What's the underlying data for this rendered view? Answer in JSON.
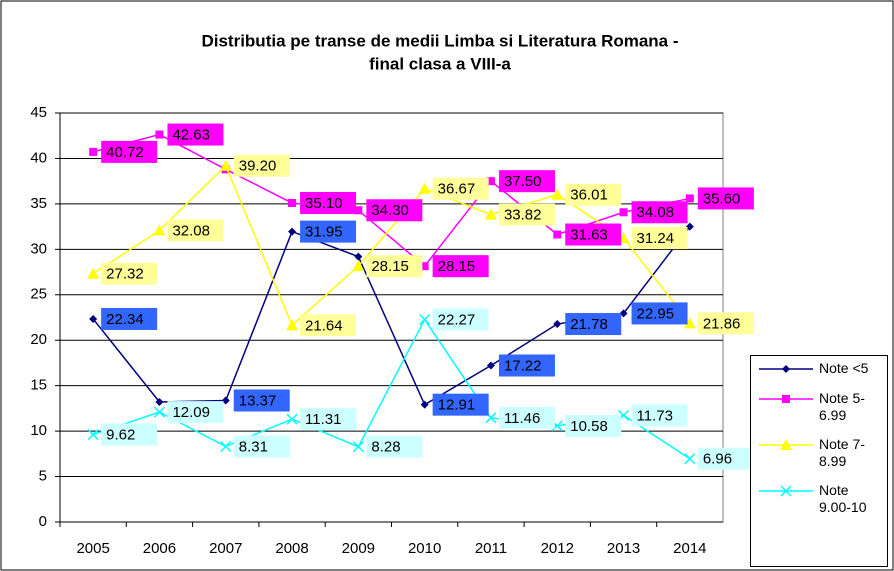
{
  "chart_data": {
    "type": "line",
    "title": [
      "Distributia pe transe de medii Limba si Literatura Romana -",
      "final clasa a VIII-a"
    ],
    "categories": [
      "2005",
      "2006",
      "2007",
      "2008",
      "2009",
      "2010",
      "2011",
      "2012",
      "2013",
      "2014"
    ],
    "ylim": [
      0,
      45
    ],
    "yticks": [
      0,
      5,
      10,
      15,
      20,
      25,
      30,
      35,
      40,
      45
    ],
    "grid": true,
    "legend": "right",
    "series": [
      {
        "name": "Note <5",
        "color": "#000080",
        "marker": "diamond",
        "label_bg": "#3366ff",
        "values": [
          22.34,
          13.2,
          13.37,
          31.95,
          29.2,
          12.91,
          17.22,
          21.78,
          22.95,
          32.5
        ],
        "value_labels": [
          "22.34",
          null,
          "13.37",
          "31.95",
          null,
          "12.91",
          "17.22",
          "21.78",
          "22.95",
          null
        ]
      },
      {
        "name": "Note 5-6.99",
        "color": "#ff00ff",
        "marker": "square",
        "label_bg": "#ff00ff",
        "values": [
          40.72,
          42.63,
          38.8,
          35.1,
          34.3,
          28.15,
          37.5,
          31.63,
          34.08,
          35.6
        ],
        "value_labels": [
          "40.72",
          "42.63",
          null,
          "35.10",
          "34.30",
          "28.15",
          "37.50",
          "31.63",
          "34.08",
          "35.60"
        ]
      },
      {
        "name": "Note 7-8.99",
        "color": "#ffff00",
        "marker": "triangle",
        "label_bg": "#ffff99",
        "values": [
          27.32,
          32.08,
          39.2,
          21.64,
          28.15,
          36.67,
          33.82,
          36.01,
          31.24,
          21.86
        ],
        "value_labels": [
          "27.32",
          "32.08",
          "39.20",
          "21.64",
          "28.15",
          "36.67",
          "33.82",
          "36.01",
          "31.24",
          "21.86"
        ]
      },
      {
        "name": "Note 9.00-10",
        "color": "#00ffff",
        "marker": "x",
        "label_bg": "#ccffff",
        "values": [
          9.62,
          12.09,
          8.31,
          11.31,
          8.28,
          22.27,
          11.46,
          10.58,
          11.73,
          6.96
        ],
        "value_labels": [
          "9.62",
          "12.09",
          "8.31",
          "11.31",
          "8.28",
          "22.27",
          "11.46",
          "10.58",
          "11.73",
          "6.96"
        ]
      }
    ]
  }
}
